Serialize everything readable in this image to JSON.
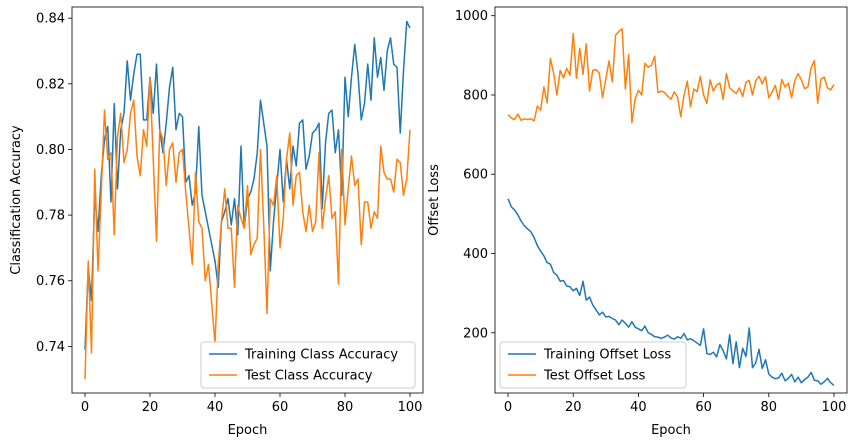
{
  "colors": {
    "training": "#1f77b4",
    "test": "#ff7f0e",
    "axes": "#000000",
    "legend_frame": "#cccccc"
  },
  "chart_data": [
    {
      "type": "line",
      "xlabel": "Epoch",
      "ylabel": "Classification Accuracy",
      "xlim": [
        -4,
        104
      ],
      "ylim": [
        0.7258,
        0.8434
      ],
      "xticks": [
        0,
        20,
        40,
        60,
        80,
        100
      ],
      "xtick_labels": [
        "0",
        "20",
        "40",
        "60",
        "80",
        "100"
      ],
      "yticks": [
        0.74,
        0.76,
        0.78,
        0.8,
        0.82,
        0.84
      ],
      "ytick_labels": [
        "0.74",
        "0.76",
        "0.78",
        "0.80",
        "0.82",
        "0.84"
      ],
      "grid": false,
      "legend_position": "lower right",
      "x": [
        0,
        1,
        2,
        3,
        4,
        5,
        6,
        7,
        8,
        9,
        10,
        11,
        12,
        13,
        14,
        15,
        16,
        17,
        18,
        19,
        20,
        21,
        22,
        23,
        24,
        25,
        26,
        27,
        28,
        29,
        30,
        31,
        32,
        33,
        34,
        35,
        36,
        37,
        38,
        39,
        40,
        41,
        42,
        43,
        44,
        45,
        46,
        47,
        48,
        49,
        50,
        51,
        52,
        53,
        54,
        55,
        56,
        57,
        58,
        59,
        60,
        61,
        62,
        63,
        64,
        65,
        66,
        67,
        68,
        69,
        70,
        71,
        72,
        73,
        74,
        75,
        76,
        77,
        78,
        79,
        80,
        81,
        82,
        83,
        84,
        85,
        86,
        87,
        88,
        89,
        90,
        91,
        92,
        93,
        94,
        95,
        96,
        97,
        98,
        99,
        100
      ],
      "series": [
        {
          "name": "Training Class Accuracy",
          "color": "#1f77b4",
          "values": [
            0.739,
            0.764,
            0.754,
            0.786,
            0.775,
            0.792,
            0.803,
            0.807,
            0.784,
            0.814,
            0.788,
            0.806,
            0.811,
            0.827,
            0.815,
            0.823,
            0.829,
            0.829,
            0.809,
            0.809,
            0.822,
            0.811,
            0.826,
            0.806,
            0.799,
            0.808,
            0.819,
            0.825,
            0.806,
            0.811,
            0.81,
            0.79,
            0.792,
            0.783,
            0.787,
            0.807,
            0.786,
            0.781,
            0.776,
            0.771,
            0.766,
            0.758,
            0.778,
            0.781,
            0.785,
            0.777,
            0.785,
            0.774,
            0.801,
            0.776,
            0.785,
            0.787,
            0.791,
            0.799,
            0.815,
            0.808,
            0.801,
            0.763,
            0.778,
            0.789,
            0.8,
            0.784,
            0.797,
            0.788,
            0.801,
            0.795,
            0.808,
            0.809,
            0.794,
            0.798,
            0.805,
            0.806,
            0.808,
            0.782,
            0.802,
            0.811,
            0.812,
            0.799,
            0.806,
            0.786,
            0.822,
            0.81,
            0.822,
            0.832,
            0.823,
            0.809,
            0.814,
            0.826,
            0.815,
            0.834,
            0.822,
            0.828,
            0.818,
            0.83,
            0.834,
            0.826,
            0.825,
            0.805,
            0.824,
            0.839,
            0.837
          ]
        },
        {
          "name": "Test Class Accuracy",
          "color": "#ff7f0e",
          "values": [
            0.73,
            0.766,
            0.738,
            0.794,
            0.763,
            0.787,
            0.812,
            0.797,
            0.799,
            0.774,
            0.804,
            0.811,
            0.796,
            0.8,
            0.811,
            0.815,
            0.798,
            0.792,
            0.806,
            0.801,
            0.822,
            0.797,
            0.772,
            0.806,
            0.803,
            0.789,
            0.8,
            0.802,
            0.79,
            0.799,
            0.8,
            0.787,
            0.776,
            0.765,
            0.793,
            0.778,
            0.776,
            0.76,
            0.765,
            0.753,
            0.741,
            0.765,
            0.778,
            0.788,
            0.776,
            0.776,
            0.758,
            0.783,
            0.779,
            0.776,
            0.789,
            0.768,
            0.771,
            0.773,
            0.8,
            0.777,
            0.75,
            0.785,
            0.783,
            0.792,
            0.77,
            0.779,
            0.797,
            0.805,
            0.783,
            0.792,
            0.793,
            0.781,
            0.775,
            0.783,
            0.775,
            0.778,
            0.799,
            0.776,
            0.785,
            0.792,
            0.779,
            0.781,
            0.759,
            0.8,
            0.777,
            0.788,
            0.798,
            0.789,
            0.791,
            0.771,
            0.784,
            0.784,
            0.776,
            0.781,
            0.779,
            0.801,
            0.793,
            0.791,
            0.791,
            0.787,
            0.797,
            0.796,
            0.786,
            0.791,
            0.806
          ]
        }
      ],
      "legend": [
        "Training Class Accuracy",
        "Test Class Accuracy"
      ]
    },
    {
      "type": "line",
      "xlabel": "Epoch",
      "ylabel": "Offset Loss",
      "xlim": [
        -4,
        104
      ],
      "ylim": [
        48,
        1022
      ],
      "xticks": [
        0,
        20,
        40,
        60,
        80,
        100
      ],
      "xtick_labels": [
        "0",
        "20",
        "40",
        "60",
        "80",
        "100"
      ],
      "yticks": [
        200,
        400,
        600,
        800,
        1000
      ],
      "ytick_labels": [
        "200",
        "400",
        "600",
        "800",
        "1000"
      ],
      "grid": false,
      "legend_position": "lower left",
      "x": [
        0,
        1,
        2,
        3,
        4,
        5,
        6,
        7,
        8,
        9,
        10,
        11,
        12,
        13,
        14,
        15,
        16,
        17,
        18,
        19,
        20,
        21,
        22,
        23,
        24,
        25,
        26,
        27,
        28,
        29,
        30,
        31,
        32,
        33,
        34,
        35,
        36,
        37,
        38,
        39,
        40,
        41,
        42,
        43,
        44,
        45,
        46,
        47,
        48,
        49,
        50,
        51,
        52,
        53,
        54,
        55,
        56,
        57,
        58,
        59,
        60,
        61,
        62,
        63,
        64,
        65,
        66,
        67,
        68,
        69,
        70,
        71,
        72,
        73,
        74,
        75,
        76,
        77,
        78,
        79,
        80,
        81,
        82,
        83,
        84,
        85,
        86,
        87,
        88,
        89,
        90,
        91,
        92,
        93,
        94,
        95,
        96,
        97,
        98,
        99,
        100
      ],
      "series": [
        {
          "name": "Training Offset Loss",
          "color": "#1f77b4",
          "values": [
            538,
            518,
            510,
            498,
            482,
            470,
            462,
            455,
            440,
            420,
            406,
            394,
            377,
            373,
            352,
            345,
            330,
            332,
            318,
            316,
            306,
            312,
            294,
            330,
            282,
            290,
            270,
            258,
            245,
            252,
            240,
            241,
            236,
            232,
            220,
            232,
            224,
            214,
            228,
            214,
            210,
            205,
            217,
            200,
            196,
            190,
            189,
            186,
            189,
            194,
            187,
            184,
            190,
            186,
            198,
            182,
            185,
            180,
            174,
            168,
            210,
            148,
            145,
            151,
            139,
            170,
            155,
            134,
            195,
            122,
            177,
            112,
            161,
            140,
            212,
            112,
            124,
            158,
            110,
            132,
            96,
            88,
            84,
            86,
            98,
            79,
            85,
            95,
            76,
            88,
            74,
            82,
            88,
            100,
            80,
            79,
            70,
            76,
            85,
            74,
            67
          ]
        },
        {
          "name": "Test Offset Loss",
          "color": "#ff7f0e",
          "values": [
            750,
            742,
            738,
            752,
            736,
            740,
            738,
            740,
            735,
            772,
            762,
            820,
            780,
            892,
            855,
            800,
            862,
            843,
            867,
            850,
            955,
            842,
            918,
            852,
            929,
            810,
            862,
            864,
            855,
            793,
            840,
            886,
            833,
            951,
            960,
            967,
            815,
            902,
            730,
            790,
            812,
            800,
            880,
            870,
            875,
            898,
            806,
            810,
            806,
            797,
            789,
            808,
            795,
            745,
            800,
            835,
            770,
            815,
            808,
            847,
            800,
            779,
            838,
            810,
            825,
            830,
            789,
            854,
            818,
            810,
            804,
            818,
            796,
            832,
            837,
            800,
            836,
            847,
            828,
            846,
            793,
            807,
            824,
            789,
            839,
            820,
            830,
            793,
            836,
            854,
            838,
            816,
            820,
            869,
            887,
            779,
            840,
            845,
            818,
            813,
            826
          ]
        }
      ],
      "legend": [
        "Training Offset Loss",
        "Test Offset Loss"
      ]
    }
  ]
}
